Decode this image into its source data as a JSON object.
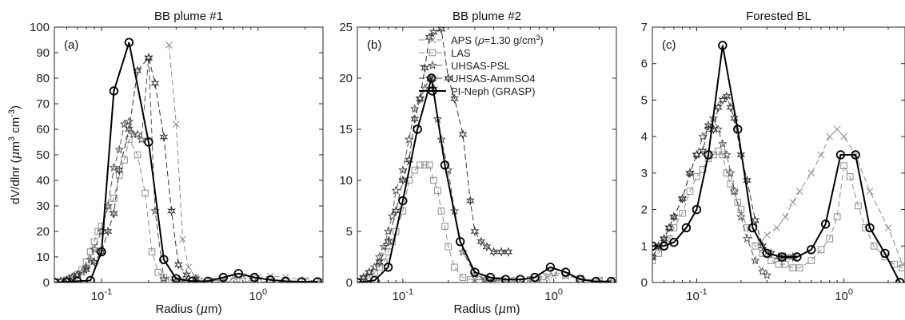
{
  "figure": {
    "ylabel": "dV/dlnr (μm³ cm⁻³)",
    "ylabel_parts": [
      "dV/dlnr (",
      "μ",
      "m",
      "3",
      " cm",
      "-3",
      ")"
    ]
  },
  "legend": [
    {
      "label": "APS (ρ=1.30 g/cm³)",
      "label_parts": [
        "APS (",
        "ρ",
        "=1.30 g/cm",
        "3",
        ")"
      ],
      "marker": "x",
      "color": "#8c8c8c",
      "dash": true
    },
    {
      "label": "LAS",
      "marker": "square",
      "color": "#8c8c8c",
      "dash": true
    },
    {
      "label": "UHSAS-PSL",
      "marker": "star5",
      "color": "#555555",
      "dash": true
    },
    {
      "label": "UHSAS-AmmSO4",
      "marker": "star6",
      "color": "#333333",
      "dash": true
    },
    {
      "label": "PI-Neph (GRASP)",
      "marker": "circle",
      "color": "#000000",
      "dash": false
    }
  ],
  "chart_data": [
    {
      "type": "line",
      "title": "BB plume #1",
      "panel": "(a)",
      "xlabel": "Radius (μm)",
      "xlabel_parts": [
        "Radius (",
        "μ",
        "m)"
      ],
      "xscale": "log",
      "xlim": [
        0.05,
        2.6
      ],
      "ylim": [
        0,
        100
      ],
      "yticks": [
        0,
        10,
        20,
        30,
        40,
        50,
        60,
        70,
        80,
        90,
        100
      ],
      "xticks": [
        {
          "v": 0.1,
          "base": "10",
          "exp": "-1"
        },
        {
          "v": 1,
          "base": "10",
          "exp": "0"
        }
      ],
      "series": [
        {
          "name": "APS (ρ=1.30 g/cm³)",
          "x": [
            0.27,
            0.3,
            0.33,
            0.36,
            0.4,
            0.45,
            0.5,
            0.6,
            0.7,
            0.8,
            0.9,
            1.0,
            1.2,
            1.5,
            2.0,
            2.5
          ],
          "y": [
            93,
            62,
            17,
            6,
            2,
            1,
            0.5,
            1,
            2,
            2.5,
            1.5,
            2,
            2.5,
            2,
            1,
            0.5
          ]
        },
        {
          "name": "LAS",
          "x": [
            0.05,
            0.055,
            0.06,
            0.065,
            0.07,
            0.075,
            0.08,
            0.085,
            0.09,
            0.095,
            0.1,
            0.11,
            0.12,
            0.13,
            0.14,
            0.15,
            0.17,
            0.19,
            0.21,
            0.23,
            0.25,
            0.28,
            0.31,
            0.35,
            0.4,
            0.5,
            0.6,
            0.7,
            0.8,
            1.0,
            1.2,
            1.5,
            2.0,
            2.5
          ],
          "y": [
            0,
            0.3,
            1,
            2,
            3,
            5,
            8,
            12,
            16,
            20,
            22,
            29,
            33,
            42,
            48,
            56,
            50,
            35,
            12,
            4,
            2,
            1,
            0.8,
            0.5,
            0.5,
            0.5,
            0.3,
            0.3,
            0.3,
            0.3,
            0.3,
            0.3,
            0.3,
            0.3
          ]
        },
        {
          "name": "UHSAS-PSL",
          "x": [
            0.055,
            0.06,
            0.065,
            0.07,
            0.075,
            0.08,
            0.085,
            0.09,
            0.1,
            0.11,
            0.12,
            0.13,
            0.14,
            0.15,
            0.16,
            0.17,
            0.18,
            0.2,
            0.22,
            0.25,
            0.3,
            0.35,
            0.4
          ],
          "y": [
            0.5,
            1,
            2,
            3,
            4,
            6,
            9,
            13,
            20,
            30,
            45,
            52,
            62,
            63,
            58,
            58,
            56,
            88,
            28,
            1.5,
            0.5,
            0.2,
            0.2
          ]
        },
        {
          "name": "UHSAS-AmmSO4",
          "x": [
            0.055,
            0.06,
            0.065,
            0.07,
            0.08,
            0.09,
            0.1,
            0.11,
            0.12,
            0.13,
            0.15,
            0.17,
            0.2,
            0.22,
            0.25,
            0.28,
            0.31,
            0.35,
            0.4
          ],
          "y": [
            0.5,
            1,
            2,
            3,
            5,
            8,
            12,
            20,
            27,
            44,
            60,
            83,
            88,
            78,
            57,
            28,
            7,
            3,
            1.5
          ]
        },
        {
          "name": "PI-Neph (GRASP)",
          "x": [
            0.05,
            0.06,
            0.07,
            0.085,
            0.1,
            0.12,
            0.15,
            0.2,
            0.25,
            0.3,
            0.38,
            0.48,
            0.6,
            0.75,
            0.95,
            1.2,
            1.5,
            1.9,
            2.4
          ],
          "y": [
            0,
            0.2,
            0.5,
            0.8,
            12,
            75,
            94,
            55,
            9,
            1.5,
            0.5,
            0.5,
            2,
            3.5,
            2,
            1,
            0.5,
            0.3,
            0.3
          ]
        }
      ]
    },
    {
      "type": "line",
      "title": "BB plume #2",
      "panel": "(b)",
      "xlabel": "Radius (μm)",
      "xlabel_parts": [
        "Radius (",
        "μ",
        "m)"
      ],
      "xscale": "log",
      "xlim": [
        0.05,
        2.6
      ],
      "ylim": [
        0,
        25
      ],
      "yticks": [
        0,
        5,
        10,
        15,
        20,
        25
      ],
      "xticks": [
        {
          "v": 0.1,
          "base": "10",
          "exp": "-1"
        },
        {
          "v": 1,
          "base": "10",
          "exp": "0"
        }
      ],
      "series": [
        {
          "name": "APS (ρ=1.30 g/cm³)",
          "x": [
            0.3,
            0.35,
            0.4,
            0.45,
            0.5,
            0.55,
            0.6,
            0.7,
            0.8,
            0.9,
            1.0,
            1.2,
            1.5,
            2.0,
            2.5
          ],
          "y": [
            0.3,
            0.2,
            0.2,
            0.1,
            0.1,
            0.1,
            0.1,
            0.2,
            0.3,
            0.5,
            0.7,
            0.6,
            0.4,
            0.2,
            0.1
          ]
        },
        {
          "name": "LAS",
          "x": [
            0.05,
            0.055,
            0.06,
            0.065,
            0.07,
            0.075,
            0.08,
            0.085,
            0.09,
            0.1,
            0.11,
            0.12,
            0.13,
            0.14,
            0.15,
            0.16,
            0.17,
            0.18,
            0.19,
            0.2,
            0.22,
            0.25,
            0.28,
            0.32,
            0.37,
            0.45,
            0.55,
            0.7,
            0.85,
            1.0,
            1.2,
            1.5,
            2.0,
            2.5
          ],
          "y": [
            0,
            0.3,
            0.5,
            1,
            1.5,
            2,
            3,
            4,
            5,
            7,
            10,
            11,
            11.5,
            11.5,
            11.5,
            10,
            9,
            7,
            5.5,
            3.5,
            1.5,
            0.5,
            0.3,
            0.3,
            0.2,
            0.2,
            0.2,
            0.3,
            0.6,
            1,
            0.7,
            0.4,
            0.2,
            0.2
          ]
        },
        {
          "name": "UHSAS-PSL",
          "x": [
            0.055,
            0.06,
            0.065,
            0.07,
            0.075,
            0.08,
            0.085,
            0.09,
            0.1,
            0.11,
            0.12,
            0.13,
            0.14,
            0.15,
            0.16,
            0.17,
            0.18,
            0.2,
            0.22,
            0.25,
            0.3,
            0.35,
            0.4
          ],
          "y": [
            0.5,
            1,
            1.5,
            2.5,
            3.5,
            5,
            6.5,
            9,
            11,
            14,
            17,
            18,
            19,
            20,
            19,
            16,
            14,
            11,
            7,
            3,
            0.8,
            0.3,
            0.2
          ]
        },
        {
          "name": "UHSAS-AmmSO4",
          "x": [
            0.055,
            0.06,
            0.07,
            0.08,
            0.09,
            0.1,
            0.11,
            0.12,
            0.13,
            0.14,
            0.15,
            0.16,
            0.18,
            0.2,
            0.22,
            0.25,
            0.28,
            0.3,
            0.33,
            0.36,
            0.4,
            0.45,
            0.5
          ],
          "y": [
            0.5,
            1,
            2,
            4,
            7,
            10,
            12,
            16,
            18,
            21,
            24,
            24.5,
            24.8,
            20,
            18,
            14.5,
            8,
            5,
            4,
            3.5,
            3,
            3,
            3
          ]
        },
        {
          "name": "PI-Neph (GRASP)",
          "x": [
            0.05,
            0.065,
            0.08,
            0.1,
            0.125,
            0.155,
            0.19,
            0.24,
            0.3,
            0.38,
            0.48,
            0.6,
            0.75,
            0.95,
            1.2,
            1.5,
            1.9,
            2.4
          ],
          "y": [
            0,
            0.2,
            1.5,
            8,
            15,
            20,
            11.5,
            4,
            1,
            0.5,
            0.3,
            0.3,
            0.5,
            1.5,
            1,
            0.3,
            0.1,
            0.1
          ]
        }
      ]
    },
    {
      "type": "line",
      "title": "Forested BL",
      "panel": "(c)",
      "xlabel": "",
      "xscale": "log",
      "xlim": [
        0.05,
        2.6
      ],
      "ylim": [
        0,
        7
      ],
      "yticks": [
        0,
        1,
        2,
        3,
        4,
        5,
        6,
        7
      ],
      "xticks": [
        {
          "v": 0.1,
          "base": "10",
          "exp": "-1"
        },
        {
          "v": 1,
          "base": "10",
          "exp": "0"
        }
      ],
      "series": [
        {
          "name": "APS (ρ=1.30 g/cm³)",
          "x": [
            0.27,
            0.3,
            0.35,
            0.4,
            0.45,
            0.5,
            0.6,
            0.7,
            0.8,
            0.9,
            1.0,
            1.2,
            1.5,
            2.0,
            2.5
          ],
          "y": [
            1.1,
            1.3,
            1.5,
            1.8,
            2.2,
            2.5,
            3,
            3.5,
            4,
            4.2,
            4,
            3.5,
            2.5,
            1.5,
            0.5
          ]
        },
        {
          "name": "LAS",
          "x": [
            0.05,
            0.055,
            0.06,
            0.065,
            0.07,
            0.08,
            0.09,
            0.1,
            0.11,
            0.12,
            0.13,
            0.14,
            0.15,
            0.16,
            0.17,
            0.18,
            0.19,
            0.2,
            0.22,
            0.25,
            0.28,
            0.32,
            0.36,
            0.4,
            0.45,
            0.5,
            0.6,
            0.7,
            0.8,
            0.9,
            1.0,
            1.1,
            1.25,
            1.4,
            1.6,
            1.9,
            2.2,
            2.5
          ],
          "y": [
            0.6,
            0.8,
            1,
            1.2,
            1.5,
            1.9,
            2.5,
            2.9,
            3.1,
            3.4,
            3.5,
            3.6,
            3.5,
            3,
            2.7,
            2.5,
            2.2,
            2,
            1.5,
            1,
            0.8,
            0.6,
            0.5,
            0.5,
            0.4,
            0.4,
            0.6,
            0.9,
            1.2,
            1.8,
            3.2,
            2.9,
            2.1,
            1.5,
            1,
            0.7,
            0.5,
            0.4
          ]
        },
        {
          "name": "UHSAS-PSL",
          "x": [
            0.05,
            0.055,
            0.06,
            0.065,
            0.07,
            0.08,
            0.09,
            0.1,
            0.11,
            0.12,
            0.13,
            0.14,
            0.15,
            0.16,
            0.17,
            0.18,
            0.2,
            0.22,
            0.25,
            0.28,
            0.3
          ],
          "y": [
            0.7,
            1,
            1.2,
            1.5,
            1.8,
            2.3,
            3,
            3.5,
            4,
            4.2,
            4.5,
            4.2,
            3.8,
            3.5,
            3,
            2.5,
            1.8,
            1.2,
            0.6,
            0.3,
            0.2
          ]
        },
        {
          "name": "UHSAS-AmmSO4",
          "x": [
            0.05,
            0.055,
            0.06,
            0.065,
            0.07,
            0.08,
            0.09,
            0.1,
            0.11,
            0.12,
            0.13,
            0.14,
            0.15,
            0.16,
            0.17,
            0.18,
            0.2,
            0.22,
            0.25,
            0.28,
            0.32,
            0.36,
            0.4,
            0.45
          ],
          "y": [
            0.7,
            1,
            1.2,
            1.5,
            1.8,
            2.3,
            3,
            3.5,
            3.6,
            4.3,
            4.2,
            4.8,
            5,
            5.1,
            4.8,
            4.5,
            3.5,
            2.8,
            1.7,
            1,
            0.8,
            0.7,
            0.7,
            0.7
          ]
        },
        {
          "name": "PI-Neph (GRASP)",
          "x": [
            0.05,
            0.06,
            0.07,
            0.085,
            0.1,
            0.12,
            0.15,
            0.19,
            0.24,
            0.3,
            0.38,
            0.48,
            0.6,
            0.75,
            0.95,
            1.2,
            1.5,
            1.9,
            2.4
          ],
          "y": [
            1,
            1,
            1.1,
            1.5,
            2,
            3.5,
            6.5,
            4.2,
            1.5,
            0.8,
            0.7,
            0.7,
            0.9,
            1.6,
            3.5,
            3.5,
            1.5,
            0.8,
            0
          ]
        }
      ]
    }
  ]
}
